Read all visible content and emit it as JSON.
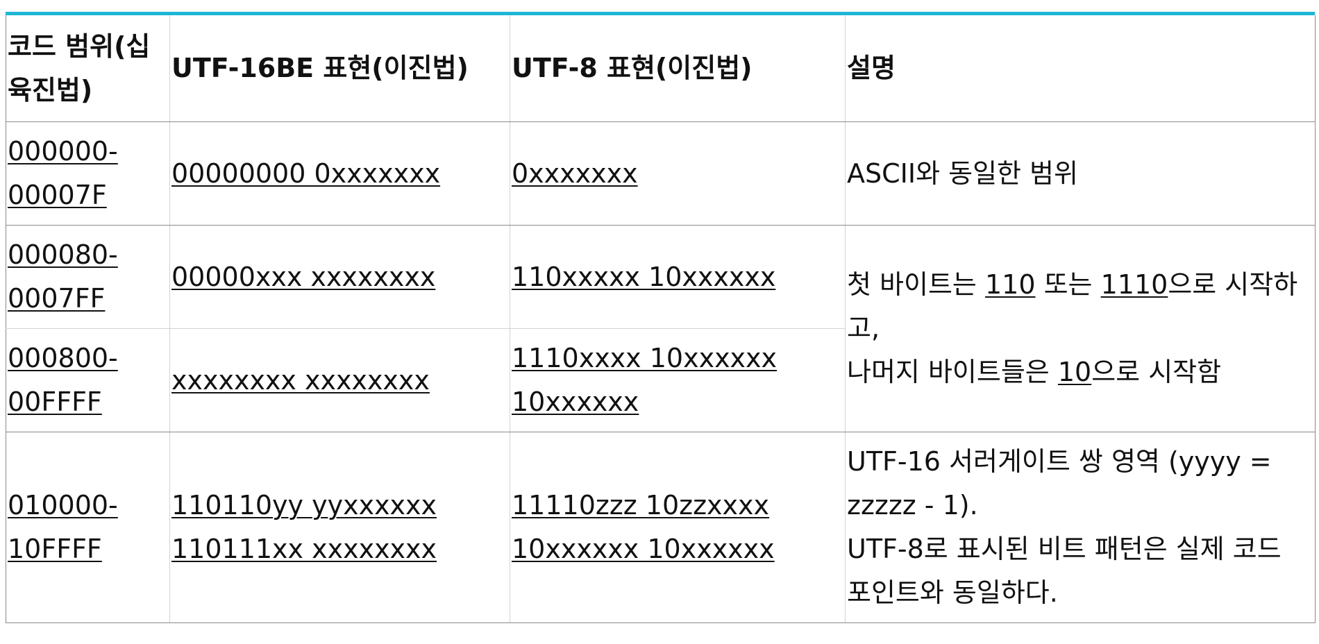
{
  "colors": {
    "accent_bar": "#1fb6d4",
    "outer_border": "#8a8a8a",
    "inner_border": "#d3d3d3",
    "text": "#111111"
  },
  "table": {
    "headers": [
      "코드 범위(십육진법)",
      "UTF-16BE 표현(이진법)",
      "UTF-8 표현(이진법)",
      "설명"
    ],
    "rows": [
      {
        "range": "000000-00007F",
        "utf16": [
          "00000000 0xxxxxxx"
        ],
        "utf8": [
          "0xxxxxxx"
        ]
      },
      {
        "range": "000080-0007FF",
        "utf16": [
          "00000xxx xxxxxxxx"
        ],
        "utf8": [
          "110xxxxx 10xxxxxx"
        ]
      },
      {
        "range": "000800-00FFFF",
        "utf16": [
          "xxxxxxxx xxxxxxxx"
        ],
        "utf8": [
          "1110xxxx 10xxxxxx",
          "10xxxxxx"
        ]
      },
      {
        "range": "010000-10FFFF",
        "utf16": [
          "110110yy yyxxxxxx",
          "110111xx xxxxxxxx"
        ],
        "utf8": [
          "11110zzz 10zzxxxx",
          "10xxxxxx 10xxxxxx"
        ]
      }
    ],
    "descriptions": {
      "ascii": "ASCII와 동일한 범위",
      "multibyte": {
        "part1": "첫 바이트는 ",
        "code1": "110",
        "part2": " 또는 ",
        "code2": "1110",
        "part3": "으로 시작하고,",
        "part4": "나머지 바이트들은 ",
        "code3": "10",
        "part5": "으로 시작함"
      },
      "surrogate_line1": "UTF-16 서러게이트 쌍 영역 (yyyy = zzzzz - 1).",
      "surrogate_line2": "UTF-8로 표시된 비트 패턴은 실제 코드 포인트와 동일하다."
    }
  }
}
